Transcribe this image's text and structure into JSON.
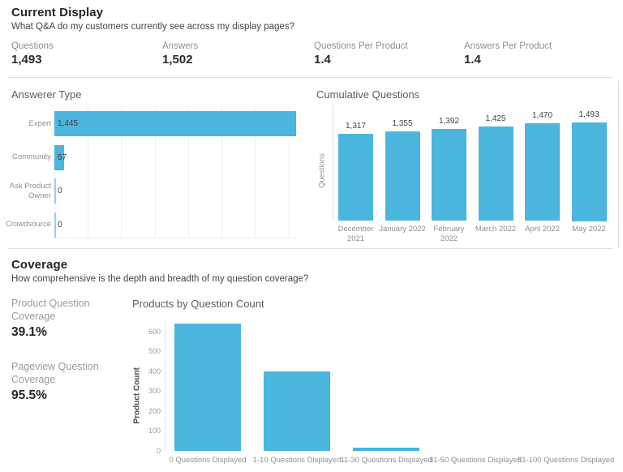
{
  "header": {
    "title": "Current Display",
    "subtitle": "What Q&A do my customers currently see across my display pages?",
    "kpis": [
      {
        "label": "Questions",
        "value": "1,493"
      },
      {
        "label": "Answers",
        "value": "1,502"
      },
      {
        "label": "Questions Per Product",
        "value": "1.4"
      },
      {
        "label": "Answers Per Product",
        "value": "1.4"
      }
    ]
  },
  "coverage": {
    "title": "Coverage",
    "subtitle": "How comprehensive is the depth and breadth of my question coverage?",
    "kpis": [
      {
        "label": "Product Question Coverage",
        "value": "39.1%"
      },
      {
        "label": "Pageview Question Coverage",
        "value": "95.5%"
      }
    ]
  },
  "colors": {
    "bar_blue": "#4AB6DD",
    "zero_mark_blue": "#8ED4EA"
  },
  "chart_data": [
    {
      "id": "answerer-type",
      "type": "bar",
      "orientation": "horizontal",
      "title": "Answerer Type",
      "categories": [
        "Expert",
        "Community",
        "Ask Product Owner",
        "Crowdsource"
      ],
      "values": [
        1445,
        57,
        0,
        0
      ],
      "value_labels": [
        "1,445",
        "57",
        "0",
        "0"
      ],
      "xlim": [
        0,
        1450
      ],
      "gridline_interval": 200,
      "grid": "vertical-on",
      "legend": "none"
    },
    {
      "id": "cumulative-questions",
      "type": "bar",
      "orientation": "vertical",
      "title": "Cumulative Questions",
      "ylabel": "Questions",
      "categories": [
        "December\n2021",
        "January 2022",
        "February\n2022",
        "March 2022",
        "April 2022",
        "May 2022"
      ],
      "values": [
        1317,
        1355,
        1392,
        1425,
        1470,
        1493
      ],
      "value_labels": [
        "1,317",
        "1,355",
        "1,392",
        "1,425",
        "1,470",
        "1,493"
      ],
      "ylim": [
        0,
        1600
      ],
      "grid": "off",
      "legend": "none"
    },
    {
      "id": "products-by-question-count",
      "type": "bar",
      "orientation": "vertical",
      "title": "Products by Question Count",
      "ylabel": "Product Count",
      "categories": [
        "0 Questions Displayed",
        "1-10 Questions Displayed",
        "11-30 Questions Displayed",
        "31-50 Questions Displayed",
        "51-100 Questions Displayed"
      ],
      "values": [
        640,
        400,
        15,
        0,
        0
      ],
      "yticks": [
        0,
        100,
        200,
        300,
        400,
        500,
        600
      ],
      "ylim": [
        0,
        655
      ],
      "grid": "off",
      "legend": "none"
    }
  ]
}
